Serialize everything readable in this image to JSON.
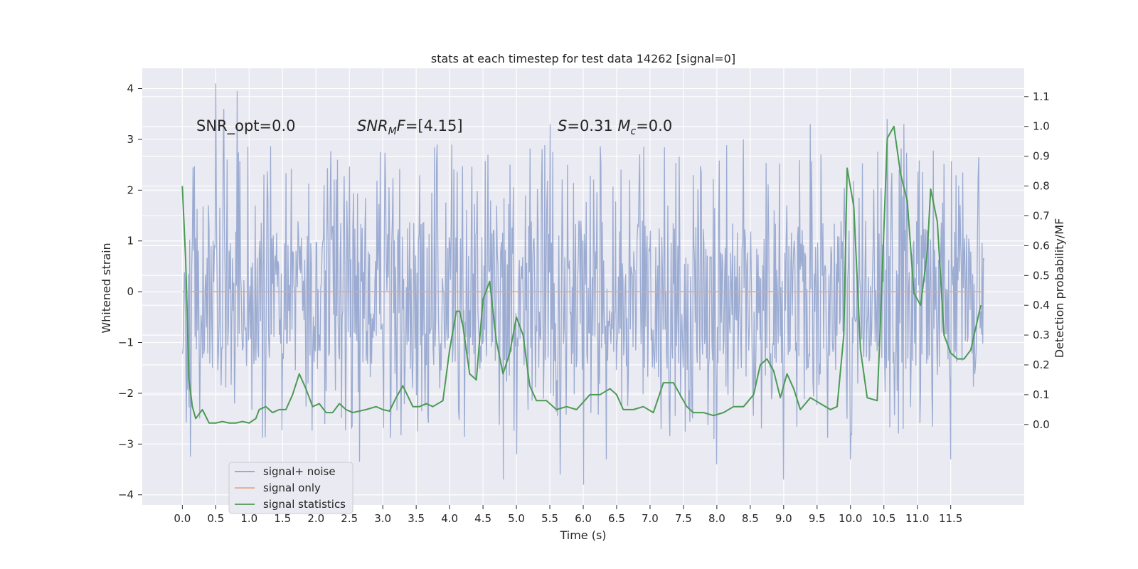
{
  "chart_data": {
    "type": "line",
    "title": "stats at each timestep for test data 14262 [signal=0]",
    "xlabel": "Time (s)",
    "ylabel": "Whitened strain",
    "y2label": "Detection probability/MF",
    "xlim": [
      -0.6,
      12.6
    ],
    "ylim": [
      -4.2,
      4.4
    ],
    "y2lim": [
      -0.27,
      1.195
    ],
    "xticks": [
      0.0,
      0.5,
      1.0,
      1.5,
      2.0,
      2.5,
      3.0,
      3.5,
      4.0,
      4.5,
      5.0,
      5.5,
      6.0,
      6.5,
      7.0,
      7.5,
      8.0,
      8.5,
      9.0,
      9.5,
      10.0,
      10.5,
      11.0,
      11.5
    ],
    "xtick_labels": [
      "0.0",
      "0.5",
      "1.0",
      "1.5",
      "2.0",
      "2.5",
      "3.0",
      "3.5",
      "4.0",
      "4.5",
      "5.0",
      "5.5",
      "6.0",
      "6.5",
      "7.0",
      "7.5",
      "8.0",
      "8.5",
      "9.0",
      "9.5",
      "10.0",
      "10.5",
      "11.0",
      "11.5"
    ],
    "yticks": [
      -4,
      -3,
      -2,
      -1,
      0,
      1,
      2,
      3,
      4
    ],
    "ytick_labels": [
      "−4",
      "−3",
      "−2",
      "−1",
      "0",
      "1",
      "2",
      "3",
      "4"
    ],
    "y2ticks": [
      0.0,
      0.1,
      0.2,
      0.3,
      0.4,
      0.5,
      0.6,
      0.7,
      0.8,
      0.9,
      1.0,
      1.1
    ],
    "y2tick_labels": [
      "0.0",
      "0.1",
      "0.2",
      "0.3",
      "0.4",
      "0.5",
      "0.6",
      "0.7",
      "0.8",
      "0.9",
      "1.0",
      "1.1"
    ],
    "grid": true,
    "legend_position": "lower-left",
    "annotations": [
      {
        "text": "SNR_opt=0.0",
        "x": 0.2,
        "y": 3.3
      },
      {
        "text": "SNR_MF=[4.15]",
        "main": "SNR",
        "sub": "M",
        "rest": "F=[4.15]",
        "x": 2.6,
        "y": 3.3
      },
      {
        "text": "S=0.31 M_c=0.0",
        "x": 5.6,
        "y": 3.3
      }
    ],
    "series": [
      {
        "name": "signal+ noise",
        "axis": "left",
        "color": "#8da0cb",
        "x_range": [
          0.0,
          12.0
        ],
        "sample_count": 1200,
        "core_band": [
          -1.55,
          1.4
        ],
        "extremes": [
          {
            "x": 0.5,
            "y": 4.1
          },
          {
            "x": 0.82,
            "y": 3.95
          },
          {
            "x": 0.62,
            "y": 3.6
          },
          {
            "x": 5.5,
            "y": 3.3
          },
          {
            "x": 10.55,
            "y": 3.4
          },
          {
            "x": 10.8,
            "y": 3.3
          },
          {
            "x": 9.4,
            "y": 3.3
          },
          {
            "x": 8.4,
            "y": 3.0
          },
          {
            "x": 4.8,
            "y": -3.7
          },
          {
            "x": 6.0,
            "y": -3.8
          },
          {
            "x": 9.0,
            "y": -3.7
          },
          {
            "x": 2.65,
            "y": -3.35
          },
          {
            "x": 5.65,
            "y": -3.6
          },
          {
            "x": 0.12,
            "y": -3.25
          },
          {
            "x": 6.35,
            "y": -3.3
          },
          {
            "x": 5.0,
            "y": -3.2
          },
          {
            "x": 10.0,
            "y": -3.3
          },
          {
            "x": 11.5,
            "y": -3.3
          },
          {
            "x": 8.0,
            "y": -3.4
          }
        ]
      },
      {
        "name": "signal only",
        "axis": "left",
        "color": "#e8a58f",
        "x": [
          0.0,
          12.0
        ],
        "y": [
          0.0,
          0.0
        ]
      },
      {
        "name": "signal statistics",
        "axis": "right",
        "color": "#4c9a55",
        "x": [
          0.0,
          0.05,
          0.1,
          0.15,
          0.2,
          0.3,
          0.4,
          0.5,
          0.6,
          0.7,
          0.8,
          0.9,
          1.0,
          1.1,
          1.15,
          1.25,
          1.35,
          1.45,
          1.55,
          1.65,
          1.75,
          1.85,
          1.95,
          2.05,
          2.15,
          2.25,
          2.35,
          2.45,
          2.55,
          2.65,
          2.75,
          2.9,
          3.0,
          3.1,
          3.2,
          3.3,
          3.45,
          3.55,
          3.65,
          3.75,
          3.9,
          4.0,
          4.1,
          4.15,
          4.2,
          4.3,
          4.4,
          4.5,
          4.6,
          4.7,
          4.8,
          4.9,
          5.0,
          5.1,
          5.2,
          5.3,
          5.45,
          5.6,
          5.75,
          5.9,
          6.1,
          6.25,
          6.4,
          6.5,
          6.6,
          6.75,
          6.9,
          7.05,
          7.2,
          7.35,
          7.45,
          7.55,
          7.65,
          7.8,
          7.95,
          8.1,
          8.25,
          8.4,
          8.55,
          8.65,
          8.75,
          8.85,
          8.95,
          9.05,
          9.15,
          9.25,
          9.4,
          9.55,
          9.7,
          9.8,
          9.9,
          9.95,
          10.05,
          10.15,
          10.25,
          10.4,
          10.45,
          10.55,
          10.65,
          10.75,
          10.85,
          10.95,
          11.05,
          11.15,
          11.2,
          11.3,
          11.4,
          11.5,
          11.6,
          11.7,
          11.8,
          11.9,
          11.95
        ],
        "y": [
          0.8,
          0.55,
          0.15,
          0.06,
          0.02,
          0.05,
          0.005,
          0.005,
          0.01,
          0.005,
          0.005,
          0.01,
          0.005,
          0.02,
          0.05,
          0.06,
          0.04,
          0.05,
          0.05,
          0.1,
          0.17,
          0.12,
          0.06,
          0.07,
          0.04,
          0.04,
          0.07,
          0.05,
          0.04,
          0.045,
          0.05,
          0.06,
          0.05,
          0.045,
          0.09,
          0.13,
          0.06,
          0.06,
          0.07,
          0.06,
          0.08,
          0.25,
          0.38,
          0.38,
          0.33,
          0.17,
          0.15,
          0.42,
          0.48,
          0.28,
          0.17,
          0.24,
          0.36,
          0.3,
          0.13,
          0.08,
          0.08,
          0.05,
          0.06,
          0.05,
          0.1,
          0.1,
          0.12,
          0.1,
          0.05,
          0.05,
          0.06,
          0.04,
          0.14,
          0.14,
          0.1,
          0.06,
          0.04,
          0.04,
          0.03,
          0.04,
          0.06,
          0.06,
          0.1,
          0.2,
          0.22,
          0.18,
          0.09,
          0.17,
          0.12,
          0.05,
          0.09,
          0.07,
          0.05,
          0.06,
          0.3,
          0.86,
          0.73,
          0.25,
          0.09,
          0.08,
          0.35,
          0.96,
          1.0,
          0.84,
          0.75,
          0.44,
          0.4,
          0.58,
          0.79,
          0.68,
          0.3,
          0.24,
          0.22,
          0.22,
          0.25,
          0.35,
          0.4
        ]
      }
    ]
  }
}
